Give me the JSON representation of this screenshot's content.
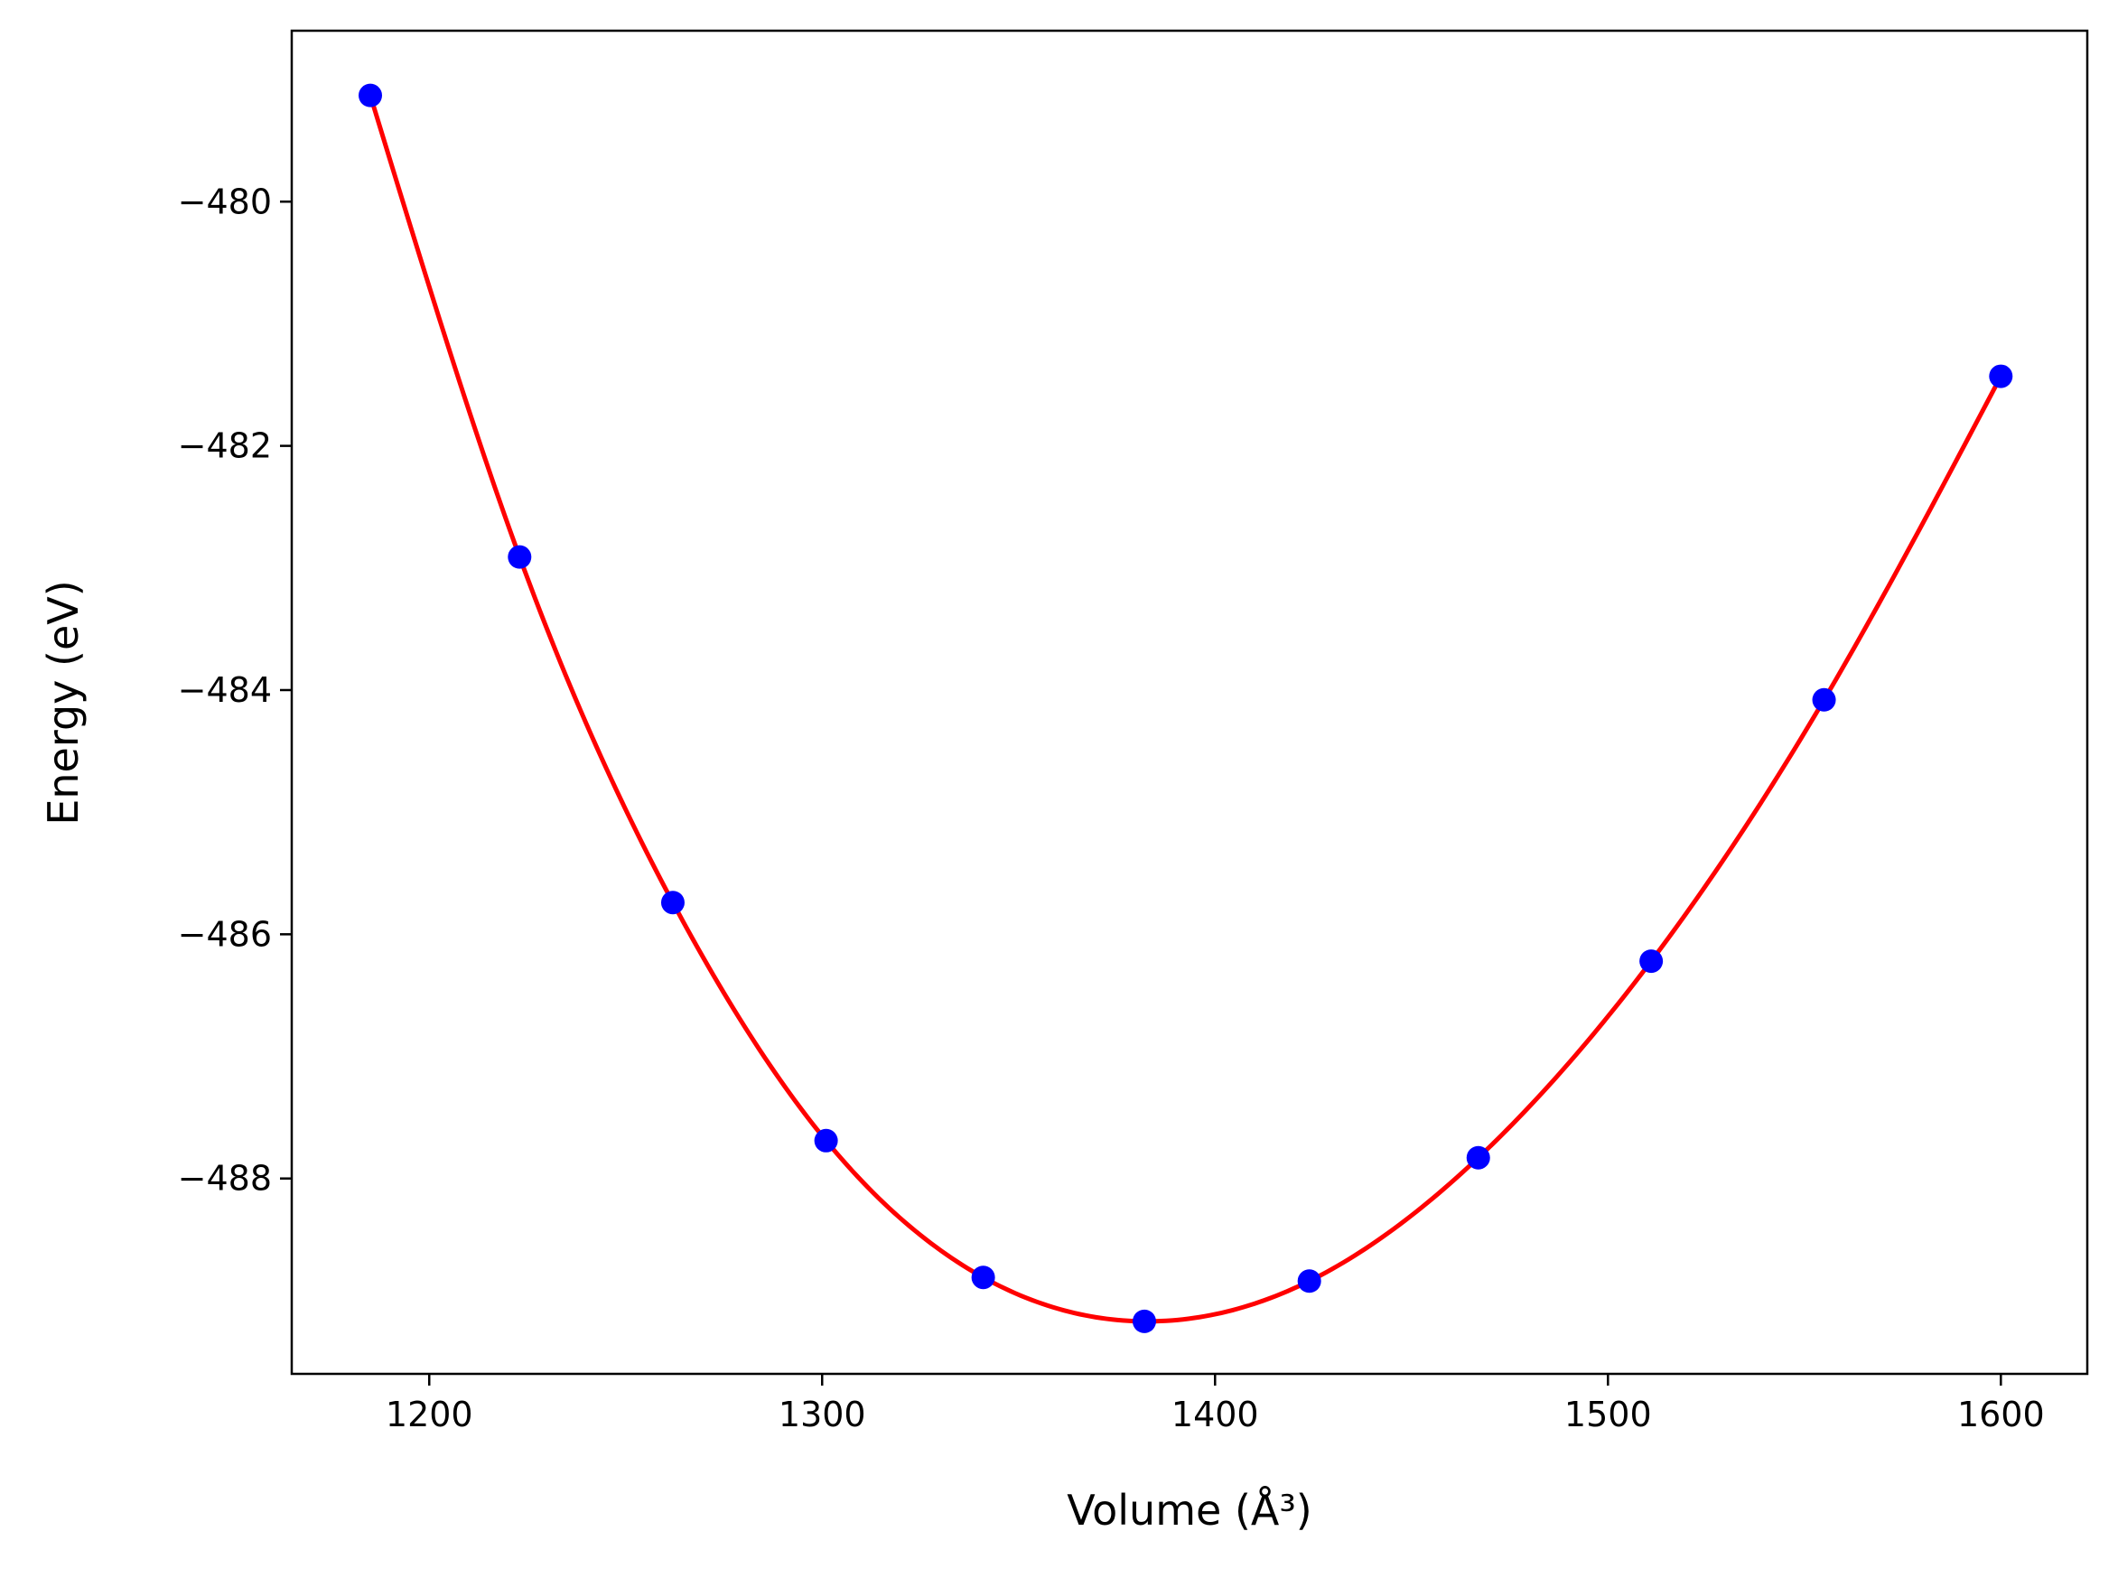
{
  "chart_data": {
    "type": "scatter",
    "xlabel": "Volume (Å³)",
    "ylabel": "Energy (eV)",
    "xlim": [
      1165,
      1622
    ],
    "ylim": [
      -489.6,
      -478.6
    ],
    "x_ticks": [
      1200,
      1300,
      1400,
      1500,
      1600
    ],
    "y_ticks": [
      -480,
      -482,
      -484,
      -486,
      -488
    ],
    "x_tick_labels": [
      "1200",
      "1300",
      "1400",
      "1500",
      "1600"
    ],
    "y_tick_labels": [
      "−480",
      "−482",
      "−484",
      "−486",
      "−488"
    ],
    "grid": false,
    "legend": "none",
    "series": [
      {
        "kind": "points",
        "color": "#0000ff",
        "x": [
          1185,
          1223,
          1262,
          1301,
          1341,
          1382,
          1424,
          1467,
          1511,
          1555,
          1600
        ],
        "y": [
          -479.13,
          -482.91,
          -485.74,
          -487.69,
          -488.81,
          -489.17,
          -488.84,
          -487.83,
          -486.22,
          -484.08,
          -481.43
        ]
      },
      {
        "kind": "fit-line",
        "color": "#ff0000",
        "x": [
          1185,
          1223,
          1262,
          1301,
          1341,
          1382,
          1424,
          1467,
          1511,
          1555,
          1600
        ],
        "y": [
          -479.13,
          -482.91,
          -485.74,
          -487.69,
          -488.81,
          -489.17,
          -488.84,
          -487.83,
          -486.22,
          -484.08,
          -481.43
        ]
      }
    ]
  }
}
